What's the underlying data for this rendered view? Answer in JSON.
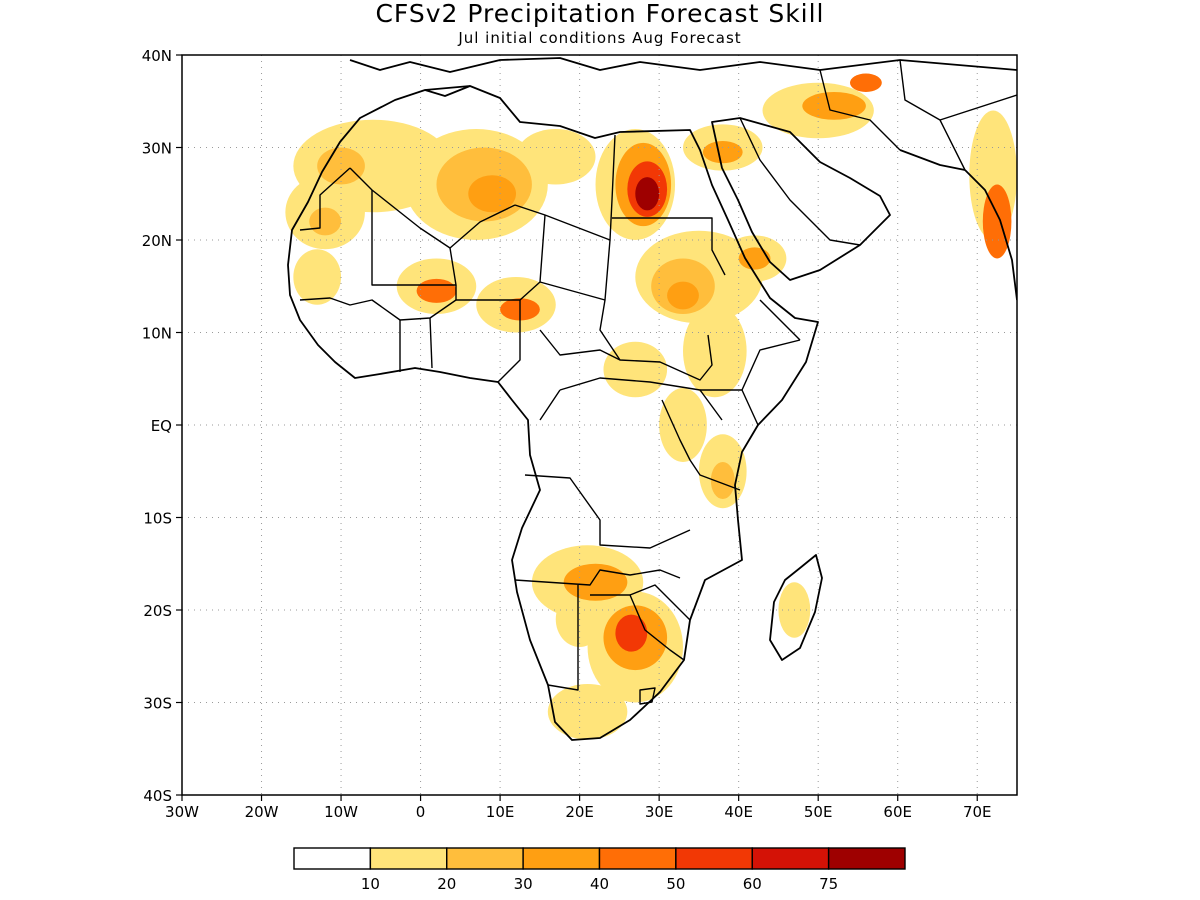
{
  "title": "CFSv2 Precipitation Forecast Skill",
  "subtitle": "Jul initial conditions  Aug Forecast",
  "chart_data": {
    "type": "heatmap",
    "title": "CFSv2 Precipitation Forecast Skill",
    "subtitle": "Jul initial conditions  Aug Forecast",
    "x_axis": {
      "range": [
        -30,
        75
      ],
      "ticks": [
        {
          "value": -30,
          "label": "30W"
        },
        {
          "value": -20,
          "label": "20W"
        },
        {
          "value": -10,
          "label": "10W"
        },
        {
          "value": 0,
          "label": "0"
        },
        {
          "value": 10,
          "label": "10E"
        },
        {
          "value": 20,
          "label": "20E"
        },
        {
          "value": 30,
          "label": "30E"
        },
        {
          "value": 40,
          "label": "40E"
        },
        {
          "value": 50,
          "label": "50E"
        },
        {
          "value": 60,
          "label": "60E"
        },
        {
          "value": 70,
          "label": "70E"
        }
      ]
    },
    "y_axis": {
      "range": [
        -40,
        40
      ],
      "ticks": [
        {
          "value": 40,
          "label": "40N"
        },
        {
          "value": 30,
          "label": "30N"
        },
        {
          "value": 20,
          "label": "20N"
        },
        {
          "value": 10,
          "label": "10N"
        },
        {
          "value": 0,
          "label": "EQ"
        },
        {
          "value": -10,
          "label": "10S"
        },
        {
          "value": -20,
          "label": "20S"
        },
        {
          "value": -30,
          "label": "30S"
        },
        {
          "value": -40,
          "label": "40S"
        }
      ]
    },
    "grid": true,
    "colorbar": {
      "placement": "bottom",
      "labels": [
        "10",
        "20",
        "30",
        "40",
        "50",
        "60",
        "75"
      ],
      "colors": [
        "#ffffff",
        "#ffe47a",
        "#ffbe3c",
        "#ff9f12",
        "#ff6e06",
        "#f23805",
        "#d41206",
        "#9e0000"
      ]
    },
    "regions": [
      {
        "level": 1,
        "lon": -6,
        "lat": 28,
        "rx": 10,
        "ry": 5
      },
      {
        "level": 2,
        "lon": -10,
        "lat": 28,
        "rx": 3,
        "ry": 2
      },
      {
        "level": 1,
        "lon": -12,
        "lat": 23,
        "rx": 5,
        "ry": 4
      },
      {
        "level": 2,
        "lon": -12,
        "lat": 22,
        "rx": 2,
        "ry": 1.5
      },
      {
        "level": 1,
        "lon": 7,
        "lat": 26,
        "rx": 9,
        "ry": 6
      },
      {
        "level": 2,
        "lon": 8,
        "lat": 26,
        "rx": 6,
        "ry": 4
      },
      {
        "level": 3,
        "lon": 9,
        "lat": 25,
        "rx": 3,
        "ry": 2
      },
      {
        "level": 1,
        "lon": 17,
        "lat": 29,
        "rx": 5,
        "ry": 3
      },
      {
        "level": 1,
        "lon": 27,
        "lat": 26,
        "rx": 5,
        "ry": 6
      },
      {
        "level": 3,
        "lon": 28,
        "lat": 26,
        "rx": 3.5,
        "ry": 4.5
      },
      {
        "level": 5,
        "lon": 28.5,
        "lat": 25.5,
        "rx": 2.5,
        "ry": 3
      },
      {
        "level": 7,
        "lon": 28.5,
        "lat": 25,
        "rx": 1.5,
        "ry": 1.8
      },
      {
        "level": 1,
        "lon": 38,
        "lat": 30,
        "rx": 5,
        "ry": 2.5
      },
      {
        "level": 3,
        "lon": 38,
        "lat": 29.5,
        "rx": 2.5,
        "ry": 1.2
      },
      {
        "level": 1,
        "lon": 50,
        "lat": 34,
        "rx": 7,
        "ry": 3
      },
      {
        "level": 3,
        "lon": 52,
        "lat": 34.5,
        "rx": 4,
        "ry": 1.5
      },
      {
        "level": 4,
        "lon": 56,
        "lat": 37,
        "rx": 2,
        "ry": 1
      },
      {
        "level": 1,
        "lon": 72,
        "lat": 27,
        "rx": 3,
        "ry": 7
      },
      {
        "level": 4,
        "lon": 72.5,
        "lat": 22,
        "rx": 1.8,
        "ry": 4
      },
      {
        "level": 1,
        "lon": 35,
        "lat": 16,
        "rx": 8,
        "ry": 5
      },
      {
        "level": 2,
        "lon": 33,
        "lat": 15,
        "rx": 4,
        "ry": 3
      },
      {
        "level": 3,
        "lon": 33,
        "lat": 14,
        "rx": 2,
        "ry": 1.5
      },
      {
        "level": 1,
        "lon": 42,
        "lat": 18,
        "rx": 4,
        "ry": 2.5
      },
      {
        "level": 3,
        "lon": 42,
        "lat": 18,
        "rx": 2,
        "ry": 1.2
      },
      {
        "level": 1,
        "lon": 2,
        "lat": 15,
        "rx": 5,
        "ry": 3
      },
      {
        "level": 4,
        "lon": 2,
        "lat": 14.5,
        "rx": 2.5,
        "ry": 1.3
      },
      {
        "level": 1,
        "lon": 12,
        "lat": 13,
        "rx": 5,
        "ry": 3
      },
      {
        "level": 4,
        "lon": 12.5,
        "lat": 12.5,
        "rx": 2.5,
        "ry": 1.2
      },
      {
        "level": 1,
        "lon": -13,
        "lat": 16,
        "rx": 3,
        "ry": 3
      },
      {
        "level": 1,
        "lon": 37,
        "lat": 8,
        "rx": 4,
        "ry": 5
      },
      {
        "level": 1,
        "lon": 27,
        "lat": 6,
        "rx": 4,
        "ry": 3
      },
      {
        "level": 1,
        "lon": 33,
        "lat": 0,
        "rx": 3,
        "ry": 4
      },
      {
        "level": 1,
        "lon": 38,
        "lat": -5,
        "rx": 3,
        "ry": 4
      },
      {
        "level": 2,
        "lon": 38,
        "lat": -6,
        "rx": 1.5,
        "ry": 2
      },
      {
        "level": 1,
        "lon": 21,
        "lat": -17,
        "rx": 7,
        "ry": 4
      },
      {
        "level": 3,
        "lon": 22,
        "lat": -17,
        "rx": 4,
        "ry": 2
      },
      {
        "level": 1,
        "lon": 27,
        "lat": -24,
        "rx": 6,
        "ry": 6
      },
      {
        "level": 3,
        "lon": 27,
        "lat": -23,
        "rx": 4,
        "ry": 3.5
      },
      {
        "level": 5,
        "lon": 26.5,
        "lat": -22.5,
        "rx": 2,
        "ry": 2
      },
      {
        "level": 1,
        "lon": 20,
        "lat": -21,
        "rx": 3,
        "ry": 3
      },
      {
        "level": 1,
        "lon": 21,
        "lat": -31,
        "rx": 5,
        "ry": 3
      },
      {
        "level": 1,
        "lon": 47,
        "lat": -20,
        "rx": 2,
        "ry": 3
      }
    ]
  }
}
